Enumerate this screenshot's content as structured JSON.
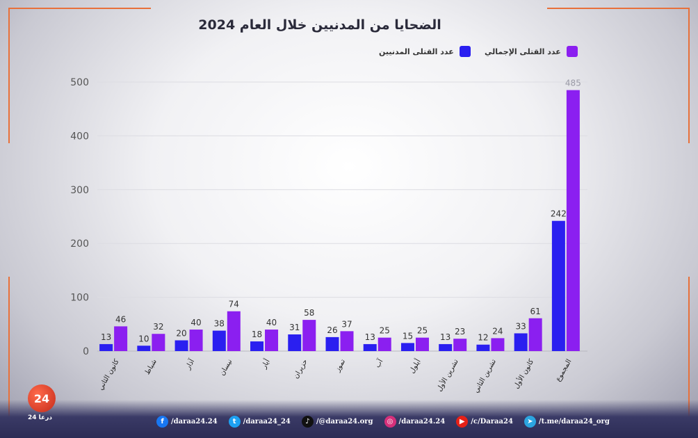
{
  "chart_data": {
    "type": "bar",
    "title": "الضحايا من المدنيين خلال العام 2024",
    "categories": [
      "كانون الثاني",
      "شباط",
      "آذار",
      "نيسان",
      "أيار",
      "حزيران",
      "تموز",
      "آب",
      "أيلول",
      "تشرين الأول",
      "تشرين الثاني",
      "كانون الأول",
      "المجموع"
    ],
    "series": [
      {
        "name": "عدد القتلى المدنيين",
        "color": "#2a1ff0",
        "values": [
          13,
          10,
          20,
          38,
          18,
          31,
          26,
          13,
          15,
          13,
          12,
          33,
          242
        ]
      },
      {
        "name": "عدد القتلى الإجمالي",
        "color": "#8b1ff0",
        "values": [
          46,
          32,
          40,
          74,
          40,
          58,
          37,
          25,
          25,
          23,
          24,
          61,
          485
        ]
      }
    ],
    "ylim": [
      0,
      500
    ],
    "yticks": [
      0,
      100,
      200,
      300,
      400,
      500
    ],
    "grid": true,
    "legend_position": "top-right"
  },
  "social": [
    {
      "icon": "facebook-icon",
      "color": "#1877f2",
      "glyph": "f",
      "label": "/daraa24.24"
    },
    {
      "icon": "twitter-icon",
      "color": "#1da1f2",
      "glyph": "t",
      "label": "/daraa24_24"
    },
    {
      "icon": "tiktok-icon",
      "color": "#111111",
      "glyph": "♪",
      "label": "/@daraa24.org"
    },
    {
      "icon": "instagram-icon",
      "color": "#d6307a",
      "glyph": "◎",
      "label": "/daraa24.24"
    },
    {
      "icon": "youtube-icon",
      "color": "#e62117",
      "glyph": "▶",
      "label": "/c/Daraa24"
    },
    {
      "icon": "telegram-icon",
      "color": "#2ca5e0",
      "glyph": "➤",
      "label": "/t.me/daraa24_org"
    }
  ],
  "logo": {
    "mark": "24",
    "sub": "درعا 24"
  }
}
